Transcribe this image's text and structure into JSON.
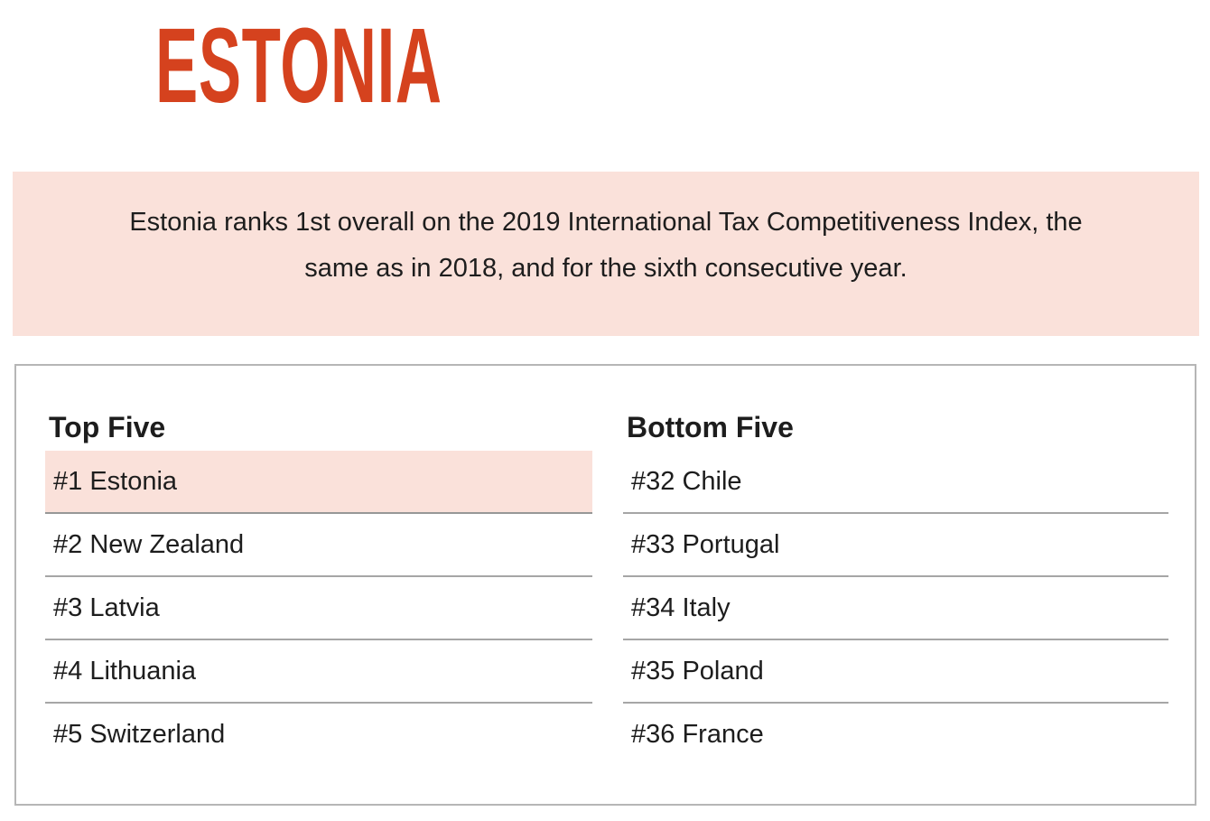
{
  "page": {
    "title": "ESTONIA"
  },
  "banner": {
    "line1": "Estonia ranks 1st overall on the 2019 International Tax Competitiveness Index, the",
    "line2": "same as in 2018, and for the sixth consecutive year."
  },
  "rankings": {
    "top_five": {
      "heading": "Top Five",
      "items": [
        {
          "rank": 1,
          "country": "Estonia",
          "label": "#1 Estonia",
          "highlighted": true
        },
        {
          "rank": 2,
          "country": "New Zealand",
          "label": "#2 New Zealand",
          "highlighted": false
        },
        {
          "rank": 3,
          "country": "Latvia",
          "label": "#3 Latvia",
          "highlighted": false
        },
        {
          "rank": 4,
          "country": "Lithuania",
          "label": "#4 Lithuania",
          "highlighted": false
        },
        {
          "rank": 5,
          "country": "Switzerland",
          "label": "#5 Switzerland",
          "highlighted": false
        }
      ]
    },
    "bottom_five": {
      "heading": "Bottom Five",
      "items": [
        {
          "rank": 32,
          "country": "Chile",
          "label": "#32 Chile",
          "highlighted": false
        },
        {
          "rank": 33,
          "country": "Portugal",
          "label": "#33 Portugal",
          "highlighted": false
        },
        {
          "rank": 34,
          "country": "Italy",
          "label": "#34 Italy",
          "highlighted": false
        },
        {
          "rank": 35,
          "country": "Poland",
          "label": "#35 Poland",
          "highlighted": false
        },
        {
          "rank": 36,
          "country": "France",
          "label": "#36 France",
          "highlighted": false
        }
      ]
    }
  },
  "colors": {
    "accent_red": "#d5421e",
    "highlight_pink": "#fae1da",
    "text": "#1d1d1d",
    "separator": "#a6a6a6",
    "box_border": "#b6b6b6"
  }
}
